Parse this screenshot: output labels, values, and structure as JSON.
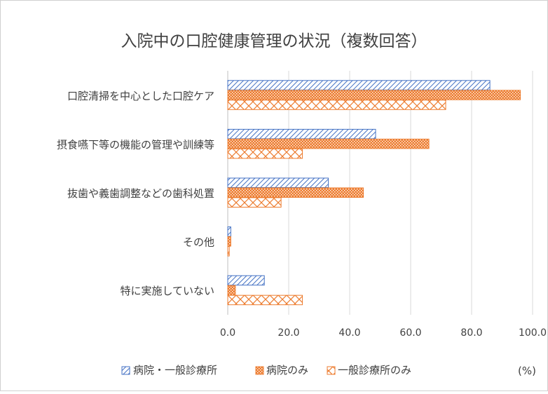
{
  "chart_data": {
    "type": "bar",
    "orientation": "horizontal",
    "title": "入院中の口腔健康管理の状況（複数回答）",
    "categories": [
      "口腔清掃を中心とした口腔ケア",
      "摂食嚥下等の機能の管理や訓練等",
      "抜歯や義歯調整などの歯科処置",
      "その他",
      "特に実施していない"
    ],
    "series": [
      {
        "name": "病院・一般診療所",
        "values": [
          86,
          48.5,
          33,
          1,
          12
        ],
        "color": "#4472C4",
        "pattern": "diagonal-hatch"
      },
      {
        "name": "病院のみ",
        "values": [
          96,
          66,
          44.5,
          1,
          2.5
        ],
        "color": "#ED7D31",
        "pattern": "dense-cross"
      },
      {
        "name": "一般診療所のみ",
        "values": [
          71.5,
          24.5,
          17.5,
          0.5,
          24.5
        ],
        "color": "#ED7D31",
        "pattern": "open-cross"
      }
    ],
    "x_ticks": [
      "0.0",
      "20.0",
      "40.0",
      "60.0",
      "80.0",
      "100.0"
    ],
    "xlim": [
      0,
      100
    ],
    "unit_label": "(%)",
    "grid": "vertical",
    "legend_position": "bottom"
  }
}
